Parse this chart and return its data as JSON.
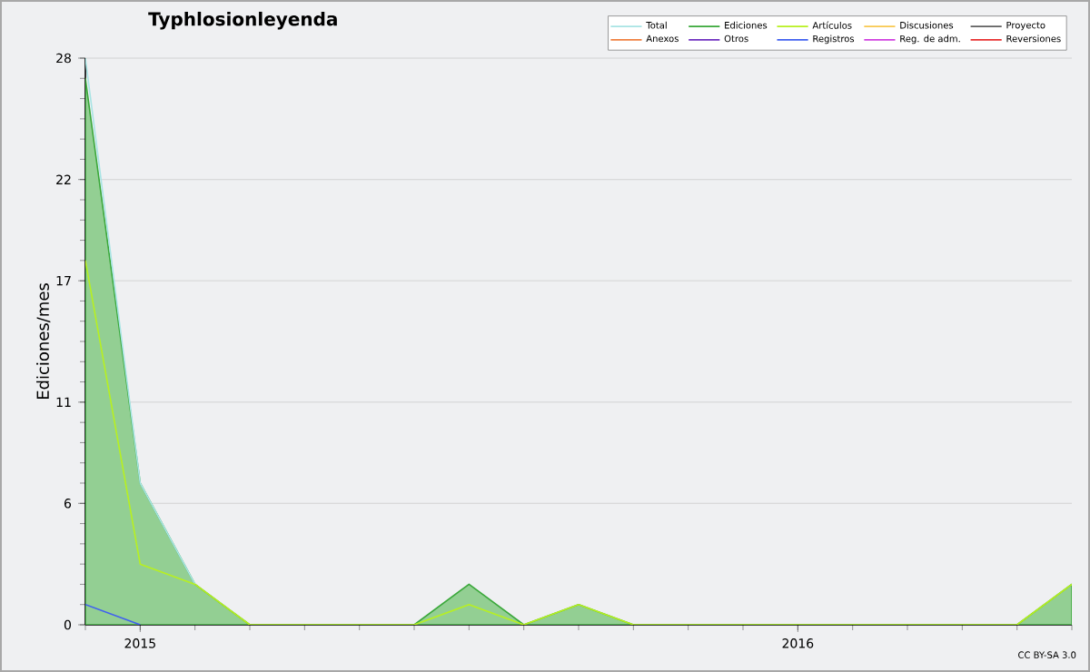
{
  "chart_data": {
    "type": "line",
    "title": "Typhlosionleyenda",
    "ylabel": "Ediciones/mes",
    "x": [
      "2014-12",
      "2015-01",
      "2015-02",
      "2015-03",
      "2015-04",
      "2015-05",
      "2015-06",
      "2015-07",
      "2015-08",
      "2015-09",
      "2015-10",
      "2015-11",
      "2015-12",
      "2016-01",
      "2016-02",
      "2016-03",
      "2016-04",
      "2016-05",
      "2016-06"
    ],
    "series": [
      {
        "name": "Total",
        "color": "#a8e4e4",
        "values": [
          28,
          7,
          2,
          null,
          null,
          null,
          null,
          null,
          null,
          null,
          null,
          null,
          null,
          null,
          null,
          null,
          null,
          null,
          null
        ]
      },
      {
        "name": "Ediciones",
        "color": "#3aa83a",
        "type": "area",
        "values": [
          27,
          7,
          2,
          0,
          0,
          0,
          0,
          2,
          0,
          1,
          0,
          0,
          0,
          0,
          0,
          0,
          0,
          0,
          2
        ]
      },
      {
        "name": "Artículos",
        "color": "#b8f020",
        "values": [
          18,
          3,
          2,
          0,
          0,
          0,
          0,
          1,
          0,
          1,
          0,
          0,
          0,
          0,
          0,
          0,
          0,
          0,
          2
        ]
      },
      {
        "name": "Discusiones",
        "color": "#f8c850",
        "values": [
          null,
          null,
          null,
          null,
          null,
          null,
          null,
          null,
          null,
          null,
          null,
          null,
          null,
          null,
          null,
          null,
          null,
          null,
          null
        ]
      },
      {
        "name": "Proyecto",
        "color": "#606060",
        "values": [
          null,
          null,
          null,
          null,
          null,
          null,
          null,
          null,
          null,
          null,
          null,
          null,
          null,
          null,
          null,
          null,
          null,
          null,
          null
        ]
      },
      {
        "name": "Anexos",
        "color": "#f08040",
        "values": [
          null,
          null,
          null,
          null,
          null,
          null,
          null,
          null,
          null,
          null,
          null,
          null,
          null,
          null,
          null,
          null,
          null,
          null,
          null
        ]
      },
      {
        "name": "Otros",
        "color": "#7030c0",
        "values": [
          null,
          null,
          null,
          null,
          null,
          null,
          null,
          null,
          null,
          null,
          null,
          null,
          null,
          null,
          null,
          null,
          null,
          null,
          null
        ]
      },
      {
        "name": "Registros",
        "color": "#4060f0",
        "values": [
          1,
          0,
          null,
          null,
          null,
          null,
          null,
          null,
          null,
          null,
          null,
          null,
          null,
          null,
          null,
          null,
          null,
          null,
          null
        ]
      },
      {
        "name": "Reg. de adm.",
        "color": "#d040e0",
        "values": [
          null,
          null,
          null,
          null,
          null,
          null,
          null,
          null,
          null,
          null,
          null,
          null,
          null,
          null,
          null,
          null,
          null,
          null,
          null
        ]
      },
      {
        "name": "Reversiones",
        "color": "#e83030",
        "values": [
          null,
          null,
          null,
          null,
          null,
          null,
          null,
          null,
          null,
          null,
          null,
          null,
          null,
          null,
          null,
          null,
          null,
          null,
          null
        ]
      }
    ],
    "xlim": [
      "2014-12",
      "2016-06"
    ],
    "xticks": [
      {
        "value": "2015-01",
        "label": "2015"
      },
      {
        "value": "2016-01",
        "label": "2016"
      }
    ],
    "ylim": [
      0,
      28
    ],
    "yticks": [
      0,
      6,
      11,
      17,
      22,
      28
    ],
    "grid": "y",
    "legend": "top right",
    "annotations": [
      "CC BY-SA 3.0"
    ]
  }
}
